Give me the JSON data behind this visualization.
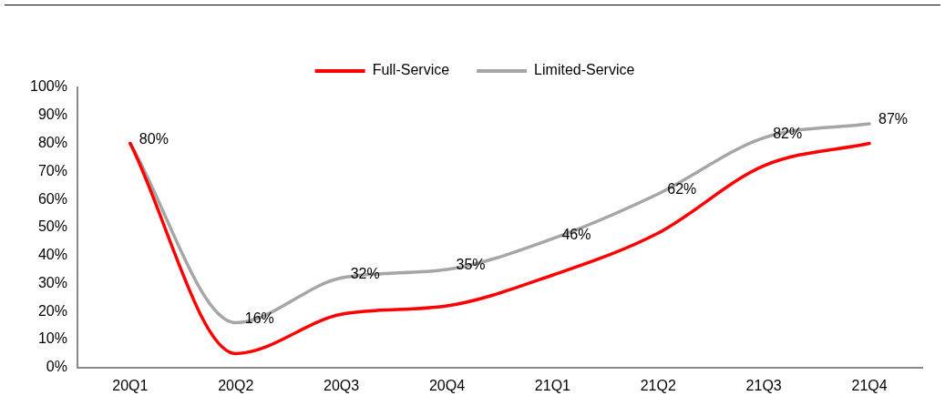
{
  "chart_data": {
    "type": "line",
    "categories": [
      "20Q1",
      "20Q2",
      "20Q3",
      "20Q4",
      "21Q1",
      "21Q2",
      "21Q3",
      "21Q4"
    ],
    "series": [
      {
        "name": "Full-Service",
        "color": "#ff0000",
        "values": [
          80,
          5,
          19,
          22,
          33,
          48,
          72,
          80
        ]
      },
      {
        "name": "Limited-Service",
        "color": "#a6a6a6",
        "values": [
          80,
          16,
          32,
          35,
          46,
          62,
          82,
          87
        ],
        "value_labels": [
          "80%",
          "16%",
          "32%",
          "35%",
          "46%",
          "62%",
          "82%",
          "87%"
        ]
      }
    ],
    "ylim": [
      0,
      100
    ],
    "yticks": [
      {
        "value": 0,
        "label": "0%"
      },
      {
        "value": 10,
        "label": "10%"
      },
      {
        "value": 20,
        "label": "20%"
      },
      {
        "value": 30,
        "label": "30%"
      },
      {
        "value": 40,
        "label": "40%"
      },
      {
        "value": 50,
        "label": "50%"
      },
      {
        "value": 60,
        "label": "60%"
      },
      {
        "value": 70,
        "label": "70%"
      },
      {
        "value": 80,
        "label": "80%"
      },
      {
        "value": 90,
        "label": "90%"
      },
      {
        "value": 100,
        "label": "100%"
      }
    ],
    "grid": false,
    "legend": "top",
    "marker": "none",
    "line_style": "solid"
  }
}
